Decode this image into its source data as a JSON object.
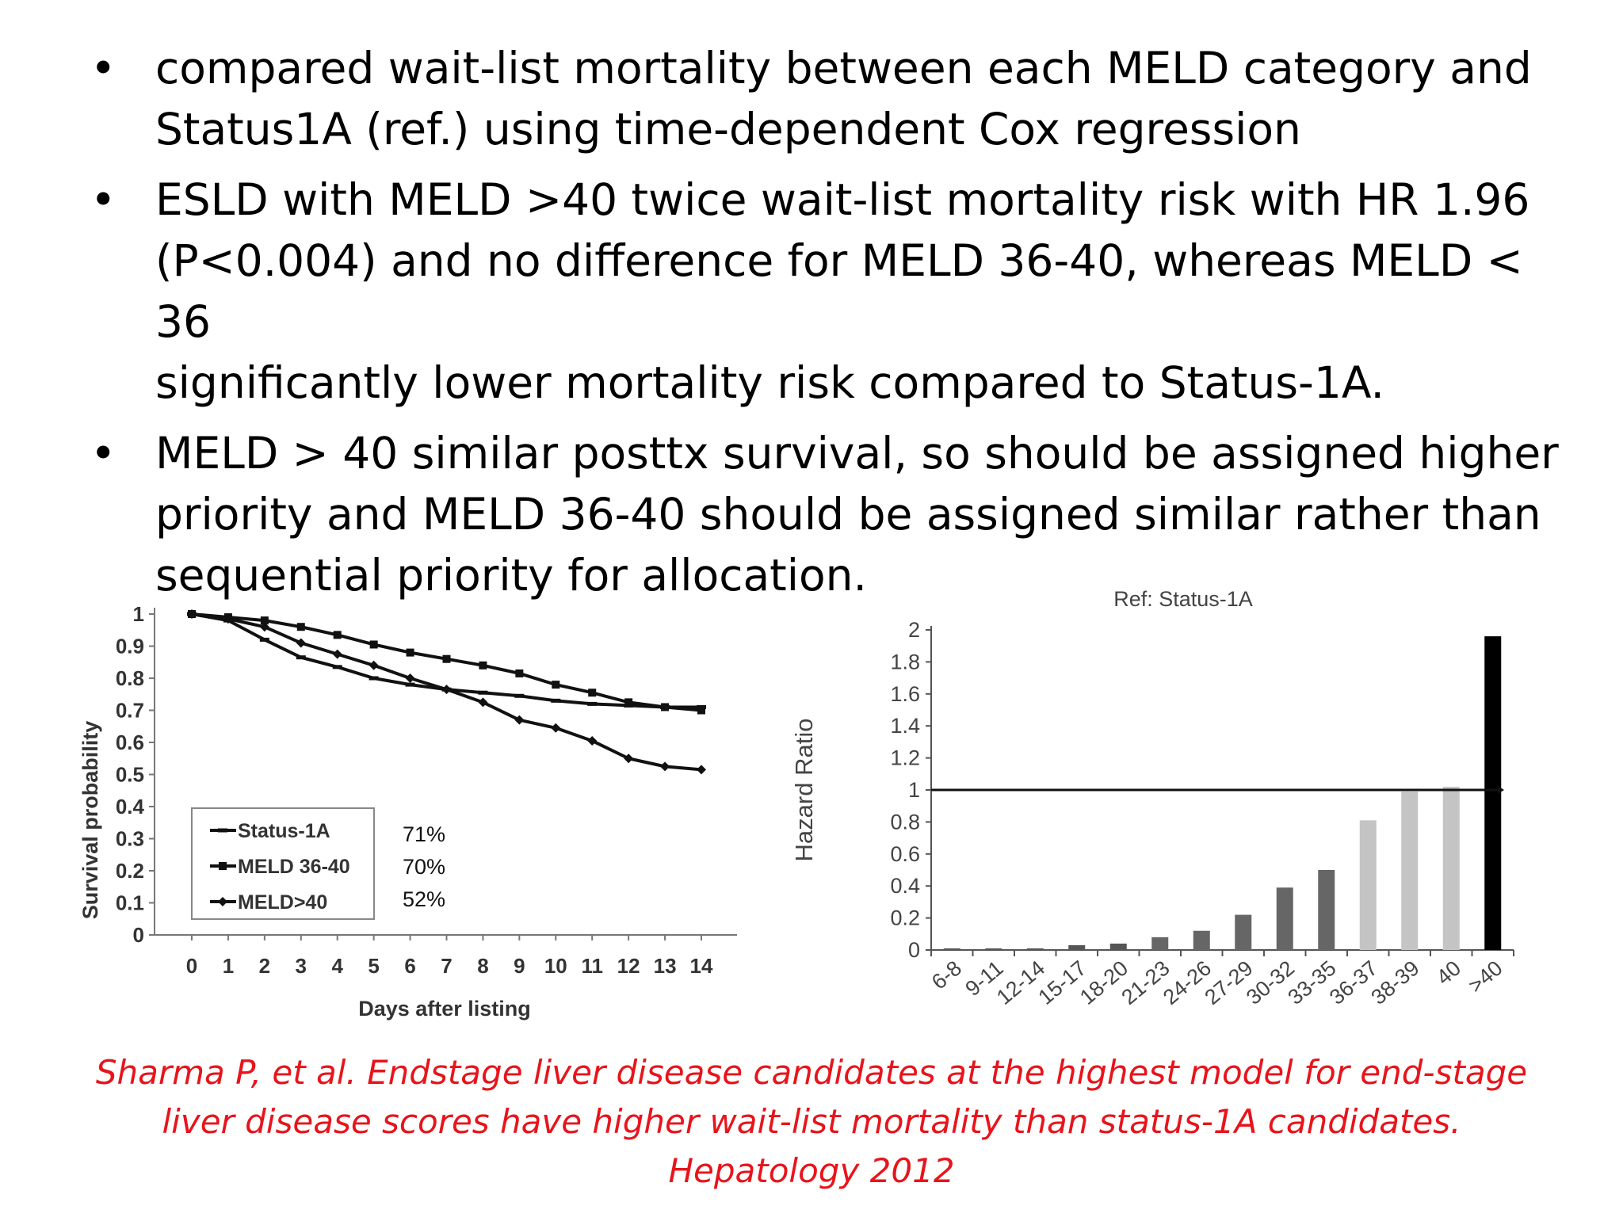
{
  "bullets": [
    {
      "lines": [
        "compared wait-list mortality between each MELD category and",
        "Status1A (ref.) using time-dependent Cox regression"
      ]
    },
    {
      "lines": [
        "ESLD with MELD >40 twice wait-list mortality risk with HR 1.96",
        "(P<0.004) and no difference for MELD 36-40, whereas MELD < 36",
        "significantly lower mortality risk compared to Status-1A."
      ]
    },
    {
      "lines": [
        "MELD > 40 similar posttx survival, so should be assigned higher",
        "priority and MELD 36-40 should be assigned similar rather than",
        "sequential priority for allocation."
      ]
    }
  ],
  "chart_data": [
    {
      "type": "line",
      "xlabel": "Days after listing",
      "ylabel": "Survival probability",
      "x": [
        0,
        1,
        2,
        3,
        4,
        5,
        6,
        7,
        8,
        9,
        10,
        11,
        12,
        13,
        14
      ],
      "xlim": [
        0,
        14
      ],
      "ylim": [
        0,
        1
      ],
      "yticks": [
        "0",
        "0.1",
        "0.2",
        "0.3",
        "0.4",
        "0.5",
        "0.6",
        "0.7",
        "0.8",
        "0.9",
        "1"
      ],
      "legend_position": "bottom-left",
      "series": [
        {
          "name": "Status-1A",
          "marker": "dash",
          "values": [
            1,
            0.98,
            0.92,
            0.865,
            0.835,
            0.8,
            0.78,
            0.765,
            0.755,
            0.745,
            0.73,
            0.72,
            0.715,
            0.71,
            0.71
          ]
        },
        {
          "name": "MELD 36-40",
          "marker": "square",
          "values": [
            1,
            0.99,
            0.98,
            0.96,
            0.935,
            0.905,
            0.88,
            0.86,
            0.84,
            0.815,
            0.78,
            0.755,
            0.725,
            0.71,
            0.7
          ]
        },
        {
          "name": "MELD>40",
          "marker": "diamond",
          "values": [
            1,
            0.985,
            0.96,
            0.91,
            0.875,
            0.84,
            0.8,
            0.765,
            0.725,
            0.67,
            0.645,
            0.605,
            0.55,
            0.525,
            0.515
          ]
        }
      ],
      "annotations": [
        "71%",
        "70%",
        "52%"
      ]
    },
    {
      "type": "bar",
      "title": "Ref: Status-1A",
      "ylabel": "Hazard Ratio",
      "categories": [
        "6-8",
        "9-11",
        "12-14",
        "15-17",
        "18-20",
        "21-23",
        "24-26",
        "27-29",
        "30-32",
        "33-35",
        "36-37",
        "38-39",
        "40",
        ">40"
      ],
      "values": [
        0.01,
        0.01,
        0.01,
        0.03,
        0.04,
        0.08,
        0.12,
        0.22,
        0.39,
        0.5,
        0.81,
        0.99,
        1.02,
        1.96
      ],
      "bar_colors": [
        "#555555",
        "#555555",
        "#555555",
        "#555555",
        "#555555",
        "#666666",
        "#666666",
        "#666666",
        "#666666",
        "#666666",
        "#c4c4c4",
        "#c4c4c4",
        "#c4c4c4",
        "#000000"
      ],
      "ylim": [
        0,
        2
      ],
      "yticks": [
        "0",
        "0.2",
        "0.4",
        "0.6",
        "0.8",
        "1",
        "1.2",
        "1.4",
        "1.6",
        "1.8",
        "2"
      ],
      "reference_line": 1
    }
  ],
  "citation": {
    "lines": [
      "Sharma P, et al. Endstage liver disease candidates at the highest model for end-stage",
      "liver disease scores have higher wait-list mortality than status-1A candidates.",
      "Hepatology 2012"
    ]
  }
}
